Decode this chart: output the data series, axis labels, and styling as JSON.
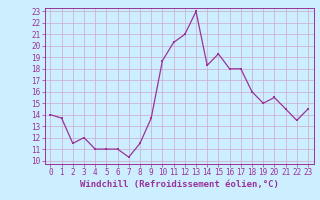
{
  "x": [
    0,
    1,
    2,
    3,
    4,
    5,
    6,
    7,
    8,
    9,
    10,
    11,
    12,
    13,
    14,
    15,
    16,
    17,
    18,
    19,
    20,
    21,
    22,
    23
  ],
  "y": [
    14,
    13.7,
    11.5,
    12,
    11,
    11,
    11,
    10.3,
    11.5,
    13.7,
    18.7,
    20.3,
    21,
    23,
    18.3,
    19.3,
    18,
    18,
    16,
    15,
    15.5,
    14.5,
    13.5,
    14.5
  ],
  "line_color": "#993399",
  "marker_color": "#993399",
  "bg_color": "#cceeff",
  "grid_color": "#ccaacc",
  "xlabel": "Windchill (Refroidissement éolien,°C)",
  "xlabel_color": "#993399",
  "tick_color": "#993399",
  "spine_color": "#993399",
  "ylim": [
    10,
    23
  ],
  "xlim": [
    -0.5,
    23.5
  ],
  "yticks": [
    10,
    11,
    12,
    13,
    14,
    15,
    16,
    17,
    18,
    19,
    20,
    21,
    22,
    23
  ],
  "xticks": [
    0,
    1,
    2,
    3,
    4,
    5,
    6,
    7,
    8,
    9,
    10,
    11,
    12,
    13,
    14,
    15,
    16,
    17,
    18,
    19,
    20,
    21,
    22,
    23
  ],
  "font_size_label": 6.5,
  "font_size_tick": 5.5,
  "marker_size": 2.0,
  "line_width": 0.9
}
